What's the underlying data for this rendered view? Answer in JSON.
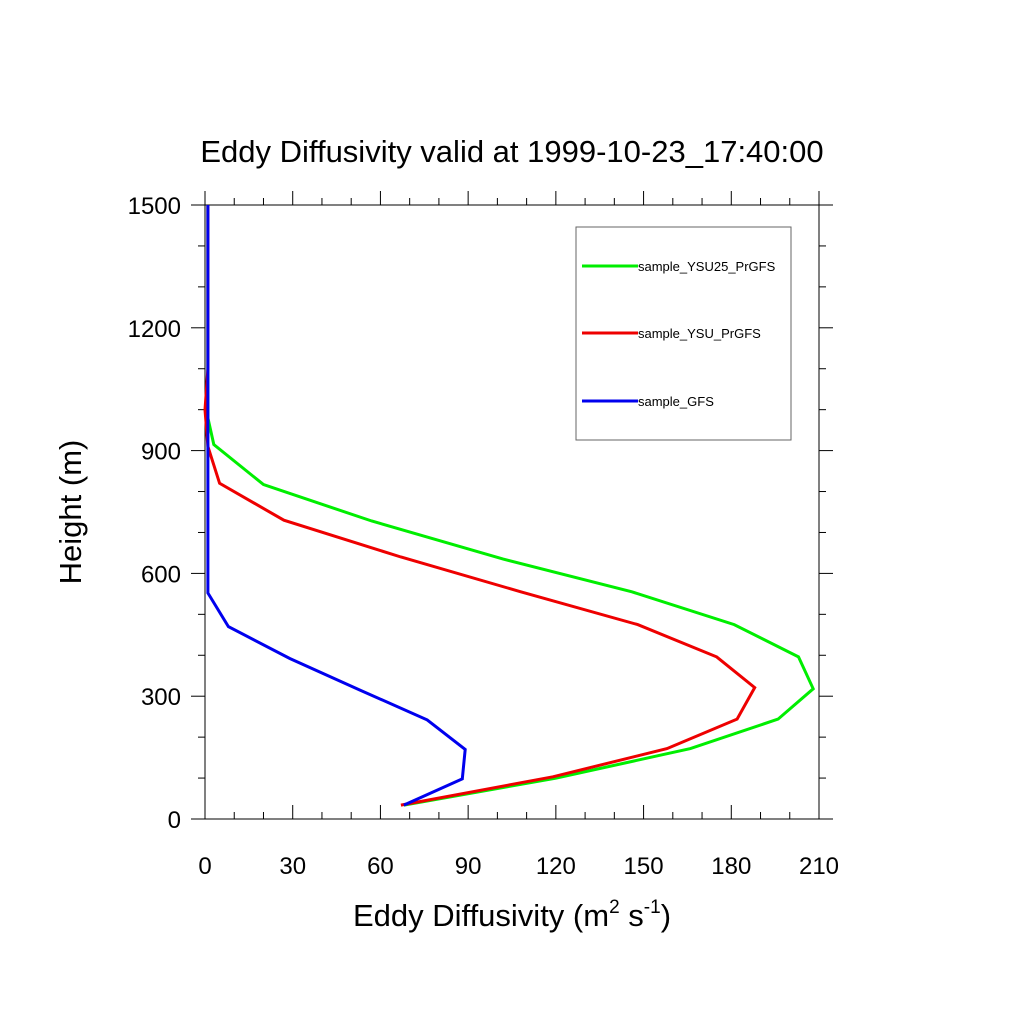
{
  "chart_data": {
    "type": "line",
    "title": "Eddy Diffusivity valid at 1999-10-23_17:40:00",
    "xlabel": {
      "base": "Eddy Diffusivity (m",
      "sup1": "2",
      "mid": " s",
      "sup2": "-1",
      "end": ")"
    },
    "ylabel": "Height (m)",
    "xlim": [
      0,
      210
    ],
    "ylim": [
      0,
      1500
    ],
    "xticks": [
      0,
      30,
      60,
      90,
      120,
      150,
      180,
      210
    ],
    "yticks": [
      0,
      300,
      600,
      900,
      1200,
      1500
    ],
    "grid": false,
    "legend_position": "top-right",
    "series": [
      {
        "name": "sample_YSU25_PrGFS",
        "color": "#00ee00",
        "points": [
          [
            68,
            34
          ],
          [
            120,
            100
          ],
          [
            166,
            172
          ],
          [
            196,
            244
          ],
          [
            208,
            318
          ],
          [
            203,
            396
          ],
          [
            181,
            475
          ],
          [
            146,
            555
          ],
          [
            102,
            635
          ],
          [
            57,
            728
          ],
          [
            20,
            817
          ],
          [
            3,
            915
          ],
          [
            1,
            980
          ],
          [
            1,
            1100
          ],
          [
            1,
            1300
          ],
          [
            1,
            1500
          ]
        ]
      },
      {
        "name": "sample_YSU_PrGFS",
        "color": "#ee0000",
        "points": [
          [
            67,
            34
          ],
          [
            119,
            103
          ],
          [
            158,
            172
          ],
          [
            182,
            244
          ],
          [
            188,
            321
          ],
          [
            175,
            396
          ],
          [
            148,
            475
          ],
          [
            108,
            555
          ],
          [
            67,
            640
          ],
          [
            27,
            730
          ],
          [
            5,
            820
          ],
          [
            1,
            910
          ],
          [
            0,
            1000
          ],
          [
            1,
            1100
          ],
          [
            1,
            1300
          ],
          [
            1,
            1500
          ]
        ]
      },
      {
        "name": "sample_GFS",
        "color": "#0000ee",
        "points": [
          [
            68,
            34
          ],
          [
            88,
            98
          ],
          [
            89,
            170
          ],
          [
            76,
            242
          ],
          [
            53,
            315
          ],
          [
            29,
            392
          ],
          [
            8,
            470
          ],
          [
            1,
            552
          ],
          [
            1,
            650
          ],
          [
            1,
            800
          ],
          [
            1,
            900
          ],
          [
            1,
            1000
          ],
          [
            1,
            1100
          ],
          [
            1,
            1300
          ],
          [
            1,
            1500
          ]
        ]
      }
    ]
  }
}
